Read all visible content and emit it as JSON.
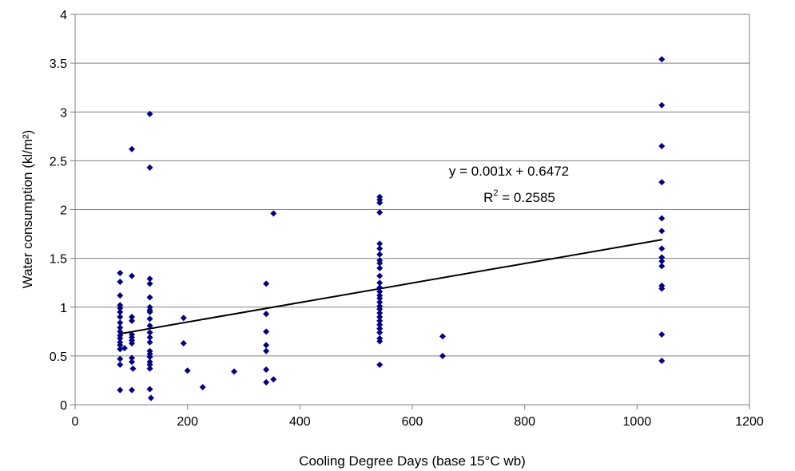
{
  "chart_data": {
    "type": "scatter",
    "xlabel": "Cooling Degree Days (base 15°C wb)",
    "ylabel": "Water consumption (kl/m²)",
    "xlim": [
      0,
      1200
    ],
    "ylim": [
      0,
      4
    ],
    "x_ticks": [
      "0",
      "200",
      "400",
      "600",
      "800",
      "1000",
      "1200"
    ],
    "y_ticks": [
      "0",
      "0.5",
      "1",
      "1.5",
      "2",
      "2.5",
      "3",
      "3.5",
      "4"
    ],
    "grid": "horizontal",
    "marker_color": "#000080",
    "trendline_color": "#000000",
    "trendline": {
      "slope": 0.001,
      "intercept": 0.6472,
      "x_range": [
        80,
        1045
      ]
    },
    "annotation": {
      "equation": "y = 0.001x + 0.6472",
      "r2_prefix": "R",
      "r2_sup": "2",
      "r2_suffix": " = 0.2585"
    },
    "points": [
      [
        80,
        1.35
      ],
      [
        80,
        1.26
      ],
      [
        80,
        1.12
      ],
      [
        80,
        1.02
      ],
      [
        80,
        0.99
      ],
      [
        80,
        0.95
      ],
      [
        80,
        0.9
      ],
      [
        80,
        0.84
      ],
      [
        80,
        0.79
      ],
      [
        80,
        0.75
      ],
      [
        80,
        0.71
      ],
      [
        80,
        0.68
      ],
      [
        80,
        0.64
      ],
      [
        80,
        0.61
      ],
      [
        80,
        0.57
      ],
      [
        80,
        0.47
      ],
      [
        80,
        0.41
      ],
      [
        80,
        0.15
      ],
      [
        88,
        0.58
      ],
      [
        101,
        2.62
      ],
      [
        101,
        1.32
      ],
      [
        101,
        0.9
      ],
      [
        101,
        0.86
      ],
      [
        101,
        0.72
      ],
      [
        101,
        0.69
      ],
      [
        101,
        0.66
      ],
      [
        101,
        0.63
      ],
      [
        101,
        0.48
      ],
      [
        101,
        0.44
      ],
      [
        101,
        0.15
      ],
      [
        103,
        0.37
      ],
      [
        133,
        2.98
      ],
      [
        133,
        2.43
      ],
      [
        133,
        1.29
      ],
      [
        133,
        1.24
      ],
      [
        133,
        1.1
      ],
      [
        133,
        1.0
      ],
      [
        133,
        0.97
      ],
      [
        133,
        0.95
      ],
      [
        133,
        0.88
      ],
      [
        133,
        0.81
      ],
      [
        133,
        0.74
      ],
      [
        133,
        0.69
      ],
      [
        133,
        0.64
      ],
      [
        133,
        0.55
      ],
      [
        133,
        0.52
      ],
      [
        133,
        0.49
      ],
      [
        133,
        0.44
      ],
      [
        133,
        0.41
      ],
      [
        133,
        0.37
      ],
      [
        133,
        0.16
      ],
      [
        135,
        0.07
      ],
      [
        193,
        0.89
      ],
      [
        193,
        0.63
      ],
      [
        200,
        0.35
      ],
      [
        227,
        0.18
      ],
      [
        283,
        0.34
      ],
      [
        340,
        1.24
      ],
      [
        340,
        0.93
      ],
      [
        340,
        0.75
      ],
      [
        340,
        0.61
      ],
      [
        340,
        0.55
      ],
      [
        340,
        0.36
      ],
      [
        340,
        0.23
      ],
      [
        353,
        1.96
      ],
      [
        353,
        0.26
      ],
      [
        542,
        2.13
      ],
      [
        542,
        2.1
      ],
      [
        542,
        2.07
      ],
      [
        542,
        1.97
      ],
      [
        542,
        1.65
      ],
      [
        542,
        1.6
      ],
      [
        542,
        1.54
      ],
      [
        542,
        1.48
      ],
      [
        542,
        1.45
      ],
      [
        542,
        1.4
      ],
      [
        542,
        1.32
      ],
      [
        542,
        1.25
      ],
      [
        542,
        1.2
      ],
      [
        542,
        1.16
      ],
      [
        542,
        1.12
      ],
      [
        542,
        1.09
      ],
      [
        542,
        1.05
      ],
      [
        542,
        1.01
      ],
      [
        542,
        0.98
      ],
      [
        542,
        0.94
      ],
      [
        542,
        0.9
      ],
      [
        542,
        0.86
      ],
      [
        542,
        0.82
      ],
      [
        542,
        0.78
      ],
      [
        542,
        0.74
      ],
      [
        542,
        0.68
      ],
      [
        542,
        0.65
      ],
      [
        542,
        0.41
      ],
      [
        654,
        0.7
      ],
      [
        654,
        0.5
      ],
      [
        1044,
        3.54
      ],
      [
        1044,
        3.07
      ],
      [
        1044,
        2.65
      ],
      [
        1044,
        2.28
      ],
      [
        1044,
        1.91
      ],
      [
        1044,
        1.78
      ],
      [
        1044,
        1.6
      ],
      [
        1044,
        1.51
      ],
      [
        1044,
        1.47
      ],
      [
        1044,
        1.42
      ],
      [
        1044,
        1.22
      ],
      [
        1044,
        1.19
      ],
      [
        1044,
        0.72
      ],
      [
        1044,
        0.45
      ]
    ]
  }
}
